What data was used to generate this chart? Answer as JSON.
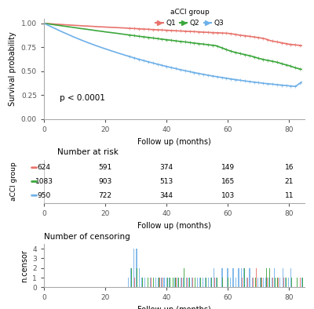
{
  "colors": {
    "Q1": "#E8736C",
    "Q2": "#3CA73C",
    "Q3": "#6EB0E8"
  },
  "surv_Q1": {
    "time": [
      0,
      1,
      2,
      3,
      4,
      5,
      6,
      7,
      8,
      9,
      10,
      11,
      12,
      13,
      14,
      15,
      16,
      17,
      18,
      19,
      20,
      22,
      24,
      26,
      28,
      30,
      32,
      34,
      36,
      38,
      40,
      42,
      44,
      46,
      48,
      50,
      52,
      54,
      56,
      58,
      60,
      62,
      64,
      66,
      68,
      70,
      72,
      74,
      76,
      78,
      80,
      82,
      84
    ],
    "surv": [
      1.0,
      0.998,
      0.996,
      0.993,
      0.991,
      0.989,
      0.987,
      0.985,
      0.983,
      0.981,
      0.979,
      0.977,
      0.975,
      0.973,
      0.972,
      0.97,
      0.968,
      0.966,
      0.964,
      0.963,
      0.961,
      0.958,
      0.955,
      0.952,
      0.948,
      0.945,
      0.941,
      0.938,
      0.934,
      0.931,
      0.928,
      0.924,
      0.921,
      0.918,
      0.915,
      0.912,
      0.908,
      0.905,
      0.902,
      0.899,
      0.896,
      0.887,
      0.876,
      0.869,
      0.86,
      0.851,
      0.84,
      0.818,
      0.806,
      0.794,
      0.782,
      0.775,
      0.768
    ]
  },
  "surv_Q2": {
    "time": [
      0,
      1,
      2,
      3,
      4,
      5,
      6,
      7,
      8,
      9,
      10,
      11,
      12,
      13,
      14,
      15,
      16,
      17,
      18,
      19,
      20,
      22,
      24,
      26,
      28,
      30,
      32,
      34,
      36,
      38,
      40,
      42,
      44,
      46,
      48,
      50,
      52,
      54,
      56,
      58,
      60,
      62,
      64,
      66,
      68,
      70,
      72,
      74,
      76,
      78,
      80,
      82,
      84
    ],
    "surv": [
      1.0,
      0.996,
      0.991,
      0.987,
      0.982,
      0.978,
      0.973,
      0.969,
      0.964,
      0.96,
      0.955,
      0.951,
      0.946,
      0.942,
      0.938,
      0.933,
      0.929,
      0.924,
      0.92,
      0.916,
      0.911,
      0.903,
      0.895,
      0.886,
      0.878,
      0.869,
      0.861,
      0.853,
      0.845,
      0.837,
      0.829,
      0.821,
      0.813,
      0.806,
      0.798,
      0.79,
      0.783,
      0.775,
      0.768,
      0.745,
      0.72,
      0.7,
      0.685,
      0.67,
      0.655,
      0.635,
      0.62,
      0.608,
      0.594,
      0.575,
      0.558,
      0.536,
      0.52
    ]
  },
  "surv_Q3": {
    "time": [
      0,
      1,
      2,
      3,
      4,
      5,
      6,
      7,
      8,
      9,
      10,
      11,
      12,
      13,
      14,
      15,
      16,
      17,
      18,
      19,
      20,
      22,
      24,
      26,
      28,
      30,
      32,
      34,
      36,
      38,
      40,
      42,
      44,
      46,
      48,
      50,
      52,
      54,
      56,
      58,
      60,
      62,
      64,
      66,
      68,
      70,
      72,
      74,
      76,
      78,
      80,
      82,
      84
    ],
    "surv": [
      1.0,
      0.985,
      0.97,
      0.955,
      0.94,
      0.925,
      0.91,
      0.896,
      0.882,
      0.868,
      0.854,
      0.841,
      0.828,
      0.815,
      0.803,
      0.791,
      0.779,
      0.767,
      0.756,
      0.745,
      0.734,
      0.713,
      0.692,
      0.672,
      0.653,
      0.634,
      0.616,
      0.599,
      0.582,
      0.566,
      0.55,
      0.535,
      0.52,
      0.506,
      0.493,
      0.48,
      0.468,
      0.456,
      0.445,
      0.435,
      0.425,
      0.415,
      0.406,
      0.397,
      0.389,
      0.381,
      0.373,
      0.367,
      0.36,
      0.354,
      0.348,
      0.342,
      0.387
    ]
  },
  "risk_times": [
    0,
    20,
    40,
    60,
    80
  ],
  "risk_Q1": [
    624,
    591,
    374,
    149,
    16
  ],
  "risk_Q2": [
    1083,
    903,
    513,
    165,
    21
  ],
  "risk_Q3": [
    950,
    722,
    344,
    103,
    11
  ],
  "pvalue": "p < 0.0001",
  "xlabel": "Follow up (months)",
  "ylabel_surv": "Survival probability",
  "ylabel_risk": "aCCI group",
  "ylabel_censor": "n.censor",
  "title_risk": "Number at risk",
  "title_censor": "Number of censoring",
  "xlim": [
    0,
    85
  ],
  "xticks": [
    0,
    20,
    40,
    60,
    80
  ],
  "ylim_surv": [
    0.0,
    1.05
  ],
  "yticks_surv": [
    0.0,
    0.25,
    0.5,
    0.75,
    1.0
  ],
  "ylim_censor": [
    0,
    4.5
  ],
  "yticks_censor": [
    0,
    1,
    2,
    3,
    4
  ],
  "legend_title": "aCCI group",
  "legend_labels": [
    "Q1",
    "Q2",
    "Q3"
  ]
}
